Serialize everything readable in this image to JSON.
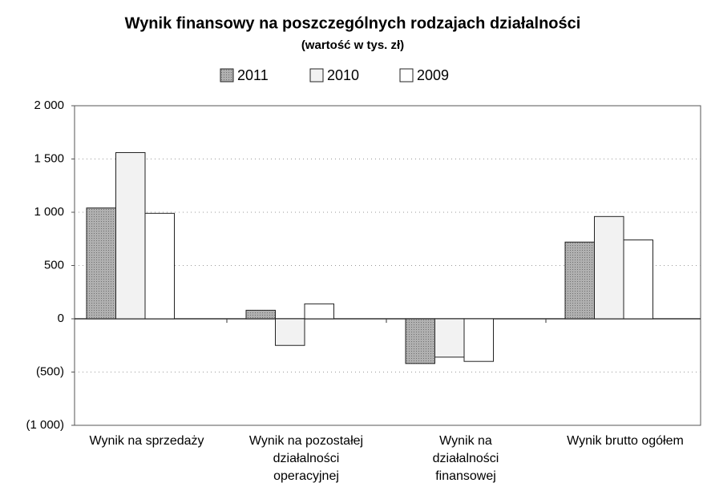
{
  "chart_data": {
    "type": "bar",
    "title": "Wynik finansowy na poszczególnych rodzajach działalności",
    "subtitle": "(wartość w tys. zł)",
    "categories": [
      "Wynik na sprzedaży",
      "Wynik na pozostałej\ndziałalności\noperacyjnej",
      "Wynik na\ndziałalności\nfinansowej",
      "Wynik brutto ogółem"
    ],
    "series": [
      {
        "name": "2011",
        "color": "#a8a8a8",
        "values": [
          1040,
          80,
          -420,
          720
        ]
      },
      {
        "name": "2010",
        "color": "#f2f2f2",
        "values": [
          1560,
          -250,
          -360,
          960
        ]
      },
      {
        "name": "2009",
        "color": "#ffffff",
        "values": [
          990,
          140,
          -400,
          740
        ]
      }
    ],
    "ylim": [
      -1000,
      2000
    ],
    "yticks": [
      {
        "value": 2000,
        "label": "2 000"
      },
      {
        "value": 1500,
        "label": "1 500"
      },
      {
        "value": 1000,
        "label": "1 000"
      },
      500,
      0,
      {
        "value": -500,
        "label": "(500)"
      },
      {
        "value": -1000,
        "label": "(1 000)"
      }
    ],
    "grid": true,
    "legend": "top"
  }
}
